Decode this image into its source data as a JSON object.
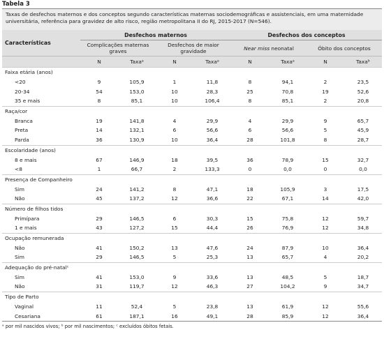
{
  "header": {
    "title": "Tabela 3",
    "caption": "Taxas de desfechos maternos e dos conceptos segundo características maternas sociodemográficas e assistenciais, em uma maternidade universitária, referência para gravidez de alto risco, região metropolitana II do RJ, 2015-2017 (N=546)."
  },
  "table": {
    "characteristics": "Características",
    "groups": [
      "Desfechos maternos",
      "Desfechos dos conceptos"
    ],
    "outcomes": [
      {
        "text": "Complicações maternas graves"
      },
      {
        "text": "Desfechos de maior gravidade"
      },
      {
        "italic": "Near miss",
        "text": " neonatal"
      },
      {
        "text": "Óbito dos conceptos"
      }
    ],
    "columns": [
      "N",
      "Taxaᵃ",
      "N",
      "Taxaᵃ",
      "N",
      "Taxaᵃ",
      "N",
      "Taxaᵇ"
    ],
    "sections": [
      {
        "label": "Faixa etária (anos)",
        "rows": [
          [
            "<20",
            "9",
            "105,9",
            "1",
            "11,8",
            "8",
            "94,1",
            "2",
            "23,5"
          ],
          [
            "20-34",
            "54",
            "153,0",
            "10",
            "28,3",
            "25",
            "70,8",
            "19",
            "52,6"
          ],
          [
            "35 e mais",
            "8",
            "85,1",
            "10",
            "106,4",
            "8",
            "85,1",
            "2",
            "20,8"
          ]
        ]
      },
      {
        "label": "Raça/cor",
        "rows": [
          [
            "Branca",
            "19",
            "141,8",
            "4",
            "29,9",
            "4",
            "29,9",
            "9",
            "65,7"
          ],
          [
            "Preta",
            "14",
            "132,1",
            "6",
            "56,6",
            "6",
            "56,6",
            "5",
            "45,9"
          ],
          [
            "Parda",
            "36",
            "130,9",
            "10",
            "36,4",
            "28",
            "101,8",
            "8",
            "28,7"
          ]
        ]
      },
      {
        "label": "Escolaridade (anos)",
        "rows": [
          [
            "8 e mais",
            "67",
            "146,9",
            "18",
            "39,5",
            "36",
            "78,9",
            "15",
            "32,7"
          ],
          [
            "<8",
            "1",
            "66,7",
            "2",
            "133,3",
            "0",
            "0,0",
            "0",
            "0,0"
          ]
        ]
      },
      {
        "label": "Presença de Companheiro",
        "rows": [
          [
            "Sim",
            "24",
            "141,2",
            "8",
            "47,1",
            "18",
            "105,9",
            "3",
            "17,5"
          ],
          [
            "Não",
            "45",
            "137,2",
            "12",
            "36,6",
            "22",
            "67,1",
            "14",
            "42,0"
          ]
        ]
      },
      {
        "label": "Número de filhos tidos",
        "rows": [
          [
            "Primípara",
            "29",
            "146,5",
            "6",
            "30,3",
            "15",
            "75,8",
            "12",
            "59,7"
          ],
          [
            "1 e mais",
            "43",
            "127,2",
            "15",
            "44,4",
            "26",
            "76,9",
            "12",
            "34,8"
          ]
        ]
      },
      {
        "label": "Ocupação remunerada",
        "rows": [
          [
            "Não",
            "41",
            "150,2",
            "13",
            "47,6",
            "24",
            "87,9",
            "10",
            "36,4"
          ],
          [
            "Sim",
            "29",
            "146,5",
            "5",
            "25,3",
            "13",
            "65,7",
            "4",
            "20,2"
          ]
        ]
      },
      {
        "label": "Adequação do pré-natalᶜ",
        "rows": [
          [
            "Sim",
            "41",
            "153,0",
            "9",
            "33,6",
            "13",
            "48,5",
            "5",
            "18,7"
          ],
          [
            "Não",
            "31",
            "119,7",
            "12",
            "46,3",
            "27",
            "104,2",
            "9",
            "34,7"
          ]
        ]
      },
      {
        "label": "Tipo de Parto",
        "rows": [
          [
            "Vaginal",
            "11",
            "52,4",
            "5",
            "23,8",
            "13",
            "61,9",
            "12",
            "55,6"
          ],
          [
            "Cesariana",
            "61",
            "187,1",
            "16",
            "49,1",
            "28",
            "85,9",
            "12",
            "36,4"
          ]
        ]
      }
    ]
  },
  "footnote": "ᵃ por mil nascidos vivos; ᵇ por mil nascimentos; ᶜ excluídos óbitos fetais."
}
